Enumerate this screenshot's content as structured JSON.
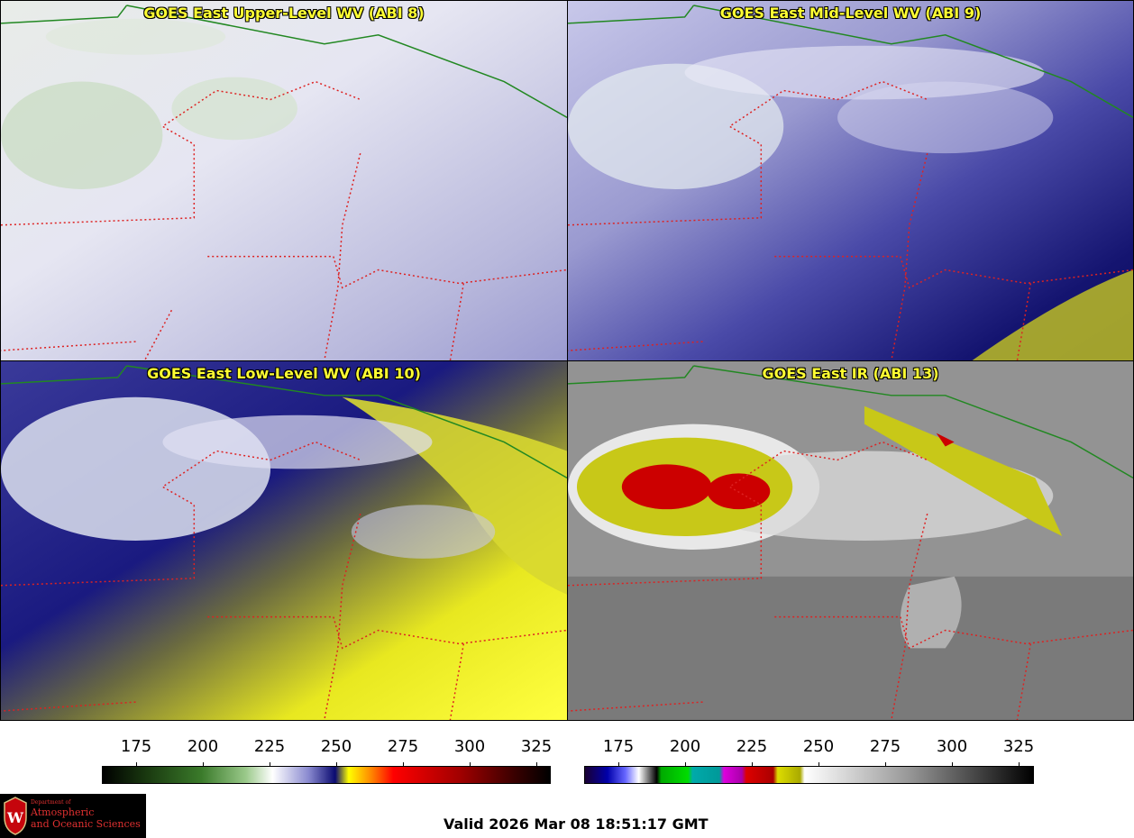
{
  "panels": [
    {
      "title": "GOES East Upper-Level WV (ABI 8)"
    },
    {
      "title": "GOES East Mid-Level WV (ABI 9)"
    },
    {
      "title": "GOES East Low-Level WV (ABI 10)"
    },
    {
      "title": "GOES East IR (ABI 13)"
    }
  ],
  "colorbars": {
    "wv_ticks": [
      "175",
      "200",
      "225",
      "250",
      "275",
      "300",
      "325"
    ],
    "ir_ticks": [
      "175",
      "200",
      "225",
      "250",
      "275",
      "300",
      "325"
    ]
  },
  "logo": {
    "line1": "Department of",
    "line2": "Atmospheric",
    "line3": "and Oceanic Sciences"
  },
  "valid_time": "Valid 2026 Mar 08 18:51:17 GMT",
  "colors": {
    "border_state": "#dd2222",
    "border_intl": "#228822",
    "title": "#ffff33"
  }
}
